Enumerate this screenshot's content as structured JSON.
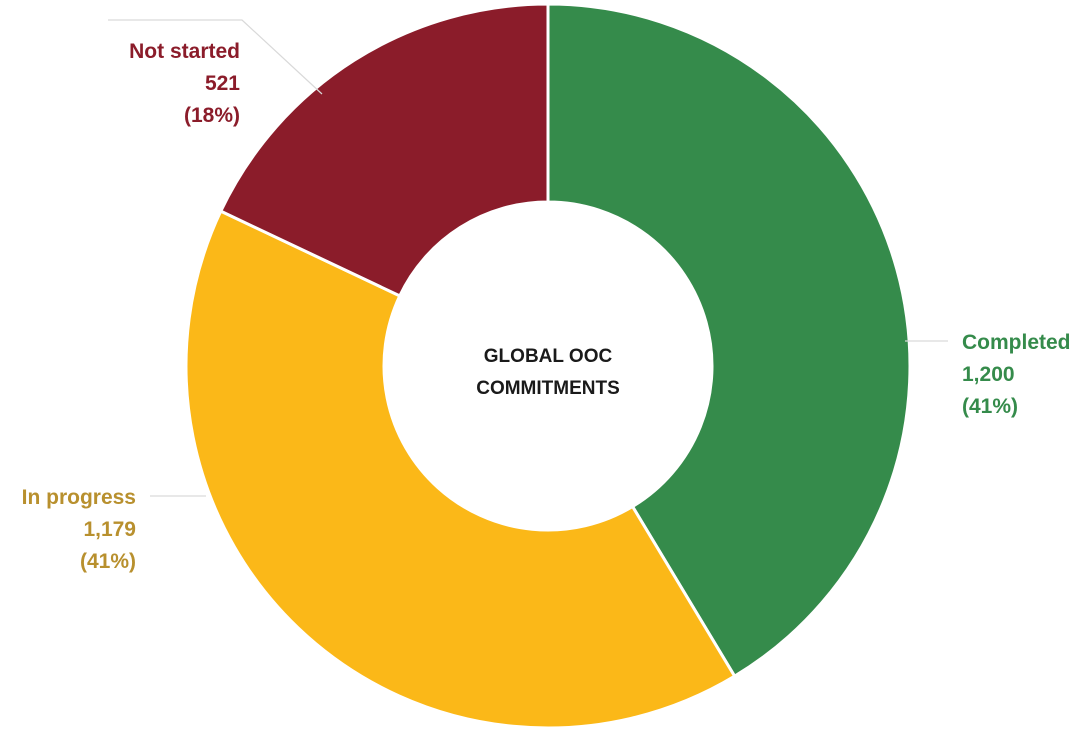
{
  "chart_data": {
    "type": "pie",
    "title": "",
    "center_label": [
      "GLOBAL OOC",
      "COMMITMENTS"
    ],
    "slices": [
      {
        "label": "Completed",
        "value": 1200,
        "value_text": "1,200",
        "percent_text": "(41%)",
        "color": "#358b4b"
      },
      {
        "label": "In progress",
        "value": 1179,
        "value_text": "1,179",
        "percent_text": "(41%)",
        "color": "#fbb818"
      },
      {
        "label": "Not started",
        "value": 521,
        "value_text": "521",
        "percent_text": "(18%)",
        "color": "#8b1c2a"
      }
    ],
    "label_colors": {
      "Completed": "#358b4b",
      "In progress": "#b8902e",
      "Not started": "#8b1c2a"
    }
  }
}
